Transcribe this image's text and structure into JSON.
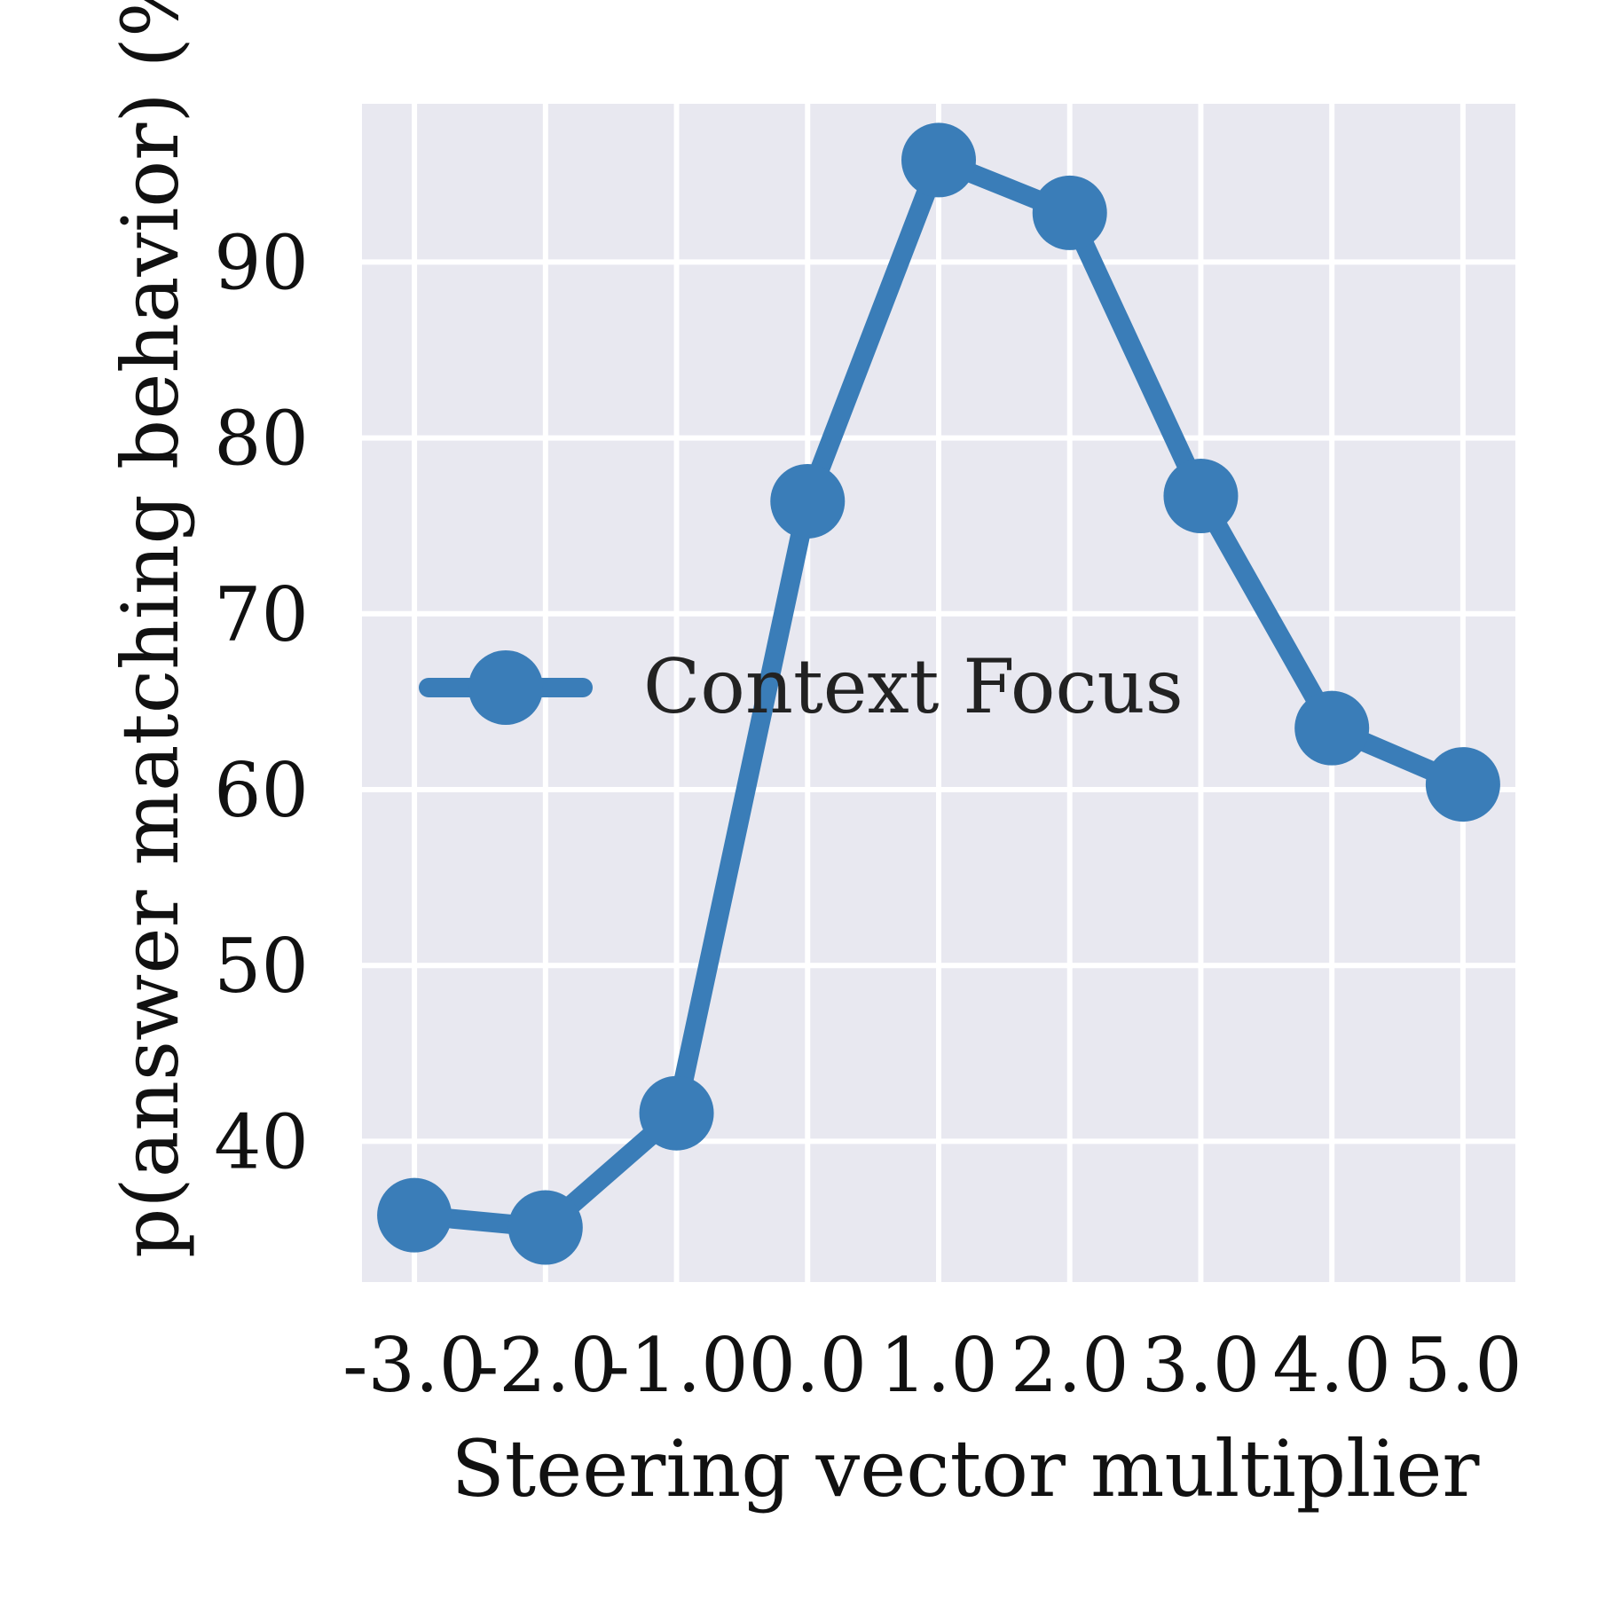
{
  "chart_data": {
    "type": "line",
    "title": "",
    "xlabel": "Steering vector multiplier",
    "ylabel": "p(answer matching behavior) (%)",
    "x_ticks": [
      "-3.0",
      "-2.0",
      "-1.0",
      "0.0",
      "1.0",
      "2.0",
      "3.0",
      "4.0",
      "5.0"
    ],
    "y_ticks": [
      "40",
      "50",
      "60",
      "70",
      "80",
      "90"
    ],
    "xlim": [
      -3.4,
      5.4
    ],
    "ylim": [
      32,
      99
    ],
    "grid": true,
    "legend_position": "center-left",
    "series": [
      {
        "name": "Context Focus",
        "color": "#3a7db8",
        "marker": "circle",
        "x": [
          -3,
          -2,
          -1,
          0,
          1,
          2,
          3,
          4,
          5
        ],
        "y": [
          35.8,
          35.1,
          41.6,
          76.4,
          95.8,
          92.8,
          76.7,
          63.5,
          60.3
        ]
      }
    ]
  }
}
